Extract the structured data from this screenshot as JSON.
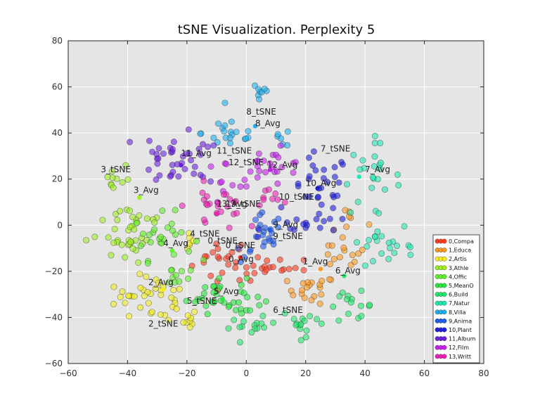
{
  "chart_data": {
    "type": "scatter",
    "title": "tSNE Visualization. Perplexity 5",
    "xlabel": "",
    "ylabel": "",
    "xlim": [
      -60,
      80
    ],
    "ylim": [
      -60,
      80
    ],
    "xticks": [
      -60,
      -40,
      -20,
      0,
      20,
      40,
      60,
      80
    ],
    "yticks": [
      -60,
      -40,
      -20,
      0,
      20,
      40,
      60,
      80
    ],
    "grid": true,
    "legend_position": "lower-right",
    "classes": [
      {
        "name": "0,Compa",
        "color": "#ff3b1f",
        "clusters": [
          {
            "cx": -8,
            "cy": -15,
            "sx": 5,
            "sy": 5,
            "n": 22
          },
          {
            "cx": 5,
            "cy": -20,
            "sx": 3,
            "sy": 3,
            "n": 12
          },
          {
            "cx": 15,
            "cy": -18,
            "sx": 3,
            "sy": 2,
            "n": 8
          }
        ]
      },
      {
        "name": "1,Educa",
        "color": "#ff9a1f",
        "clusters": [
          {
            "cx": 22,
            "cy": -28,
            "sx": 4,
            "sy": 3,
            "n": 20
          },
          {
            "cx": 32,
            "cy": -12,
            "sx": 4,
            "sy": 4,
            "n": 15
          },
          {
            "cx": 35,
            "cy": 2,
            "sx": 3,
            "sy": 3,
            "n": 6
          }
        ]
      },
      {
        "name": "2,Artis",
        "color": "#f4ee1a",
        "clusters": [
          {
            "cx": -30,
            "cy": -32,
            "sx": 5,
            "sy": 5,
            "n": 25
          },
          {
            "cx": -40,
            "cy": -30,
            "sx": 3,
            "sy": 3,
            "n": 10
          },
          {
            "cx": -22,
            "cy": -42,
            "sx": 3,
            "sy": 3,
            "n": 10
          },
          {
            "cx": -20,
            "cy": -5,
            "sx": 2,
            "sy": 3,
            "n": 6
          }
        ]
      },
      {
        "name": "3,Athle",
        "color": "#9ef01f",
        "clusters": [
          {
            "cx": -38,
            "cy": 0,
            "sx": 6,
            "sy": 6,
            "n": 30
          },
          {
            "cx": -45,
            "cy": 20,
            "sx": 3,
            "sy": 4,
            "n": 10
          },
          {
            "cx": -40,
            "cy": -10,
            "sx": 4,
            "sy": 3,
            "n": 10
          }
        ]
      },
      {
        "name": "4,Offic",
        "color": "#5ef028",
        "clusters": [
          {
            "cx": -28,
            "cy": -5,
            "sx": 5,
            "sy": 5,
            "n": 25
          },
          {
            "cx": -25,
            "cy": -22,
            "sx": 3,
            "sy": 3,
            "n": 10
          }
        ]
      },
      {
        "name": "5,MeanO",
        "color": "#26e83c",
        "clusters": [
          {
            "cx": -10,
            "cy": -30,
            "sx": 5,
            "sy": 4,
            "n": 25
          },
          {
            "cx": 0,
            "cy": -34,
            "sx": 4,
            "sy": 3,
            "n": 12
          }
        ]
      },
      {
        "name": "6,Build",
        "color": "#1fe86a",
        "clusters": [
          {
            "cx": 2,
            "cy": -44,
            "sx": 4,
            "sy": 2,
            "n": 15
          },
          {
            "cx": 20,
            "cy": -42,
            "sx": 4,
            "sy": 3,
            "n": 15
          },
          {
            "cx": 35,
            "cy": -35,
            "sx": 4,
            "sy": 3,
            "n": 15
          }
        ]
      },
      {
        "name": "7,Natur",
        "color": "#1fe8b4",
        "clusters": [
          {
            "cx": 42,
            "cy": 20,
            "sx": 5,
            "sy": 8,
            "n": 25
          },
          {
            "cx": 50,
            "cy": -12,
            "sx": 5,
            "sy": 3,
            "n": 12
          },
          {
            "cx": 42,
            "cy": -5,
            "sx": 3,
            "sy": 4,
            "n": 8
          }
        ]
      },
      {
        "name": "8,Villa",
        "color": "#1fb0f0",
        "clusters": [
          {
            "cx": 5,
            "cy": 58,
            "sx": 1.5,
            "sy": 3,
            "n": 8
          },
          {
            "cx": -5,
            "cy": 40,
            "sx": 5,
            "sy": 4,
            "n": 20
          },
          {
            "cx": 12,
            "cy": 38,
            "sx": 2,
            "sy": 2,
            "n": 6
          }
        ]
      },
      {
        "name": "9,Anima",
        "color": "#1f5cf0",
        "clusters": [
          {
            "cx": 6,
            "cy": -5,
            "sx": 3,
            "sy": 5,
            "n": 20
          },
          {
            "cx": 0,
            "cy": -13,
            "sx": 2,
            "sy": 2,
            "n": 5
          }
        ]
      },
      {
        "name": "10,Plant",
        "color": "#1f1fe0",
        "clusters": [
          {
            "cx": 25,
            "cy": 15,
            "sx": 5,
            "sy": 8,
            "n": 30
          },
          {
            "cx": 22,
            "cy": 0,
            "sx": 8,
            "sy": 2,
            "n": 15
          }
        ]
      },
      {
        "name": "11,Album",
        "color": "#6a1fe0",
        "clusters": [
          {
            "cx": -25,
            "cy": 30,
            "sx": 5,
            "sy": 6,
            "n": 30
          },
          {
            "cx": -15,
            "cy": 28,
            "sx": 3,
            "sy": 5,
            "n": 10
          }
        ]
      },
      {
        "name": "12,Film",
        "color": "#c81ff0",
        "clusters": [
          {
            "cx": 8,
            "cy": 25,
            "sx": 6,
            "sy": 4,
            "n": 25
          },
          {
            "cx": -8,
            "cy": 22,
            "sx": 3,
            "sy": 3,
            "n": 8
          }
        ]
      },
      {
        "name": "13,Writt",
        "color": "#f01fb8",
        "clusters": [
          {
            "cx": -10,
            "cy": 8,
            "sx": 5,
            "sy": 5,
            "n": 25
          },
          {
            "cx": 8,
            "cy": 12,
            "sx": 3,
            "sy": 2,
            "n": 8
          }
        ]
      }
    ],
    "annotations": [
      {
        "text": "8_tSNE",
        "x": 0,
        "y": 48
      },
      {
        "text": "8_Avg",
        "x": 3,
        "y": 43
      },
      {
        "text": "11_Avg",
        "x": -22,
        "y": 30
      },
      {
        "text": "11_tSNE",
        "x": -10,
        "y": 31
      },
      {
        "text": "7_tSNE",
        "x": 25,
        "y": 32
      },
      {
        "text": "12_tSNE",
        "x": -6,
        "y": 26
      },
      {
        "text": "12_Avg",
        "x": 7,
        "y": 25
      },
      {
        "text": "3_tSNE",
        "x": -49,
        "y": 23
      },
      {
        "text": "7_Avg",
        "x": 40,
        "y": 23
      },
      {
        "text": "10_Avg",
        "x": 20,
        "y": 17
      },
      {
        "text": "3_Avg",
        "x": -38,
        "y": 14
      },
      {
        "text": "10_tSNE",
        "x": 11,
        "y": 11
      },
      {
        "text": "13_Avg",
        "x": -10,
        "y": 8
      },
      {
        "text": "13_tSNE",
        "x": -7,
        "y": 8
      },
      {
        "text": "9_Avg",
        "x": 9,
        "y": -1
      },
      {
        "text": "4_tSNE",
        "x": -19,
        "y": -5
      },
      {
        "text": "9_tSNE",
        "x": 9,
        "y": -6
      },
      {
        "text": "0_tSNE",
        "x": -13,
        "y": -8
      },
      {
        "text": "4_Avg",
        "x": -28,
        "y": -9
      },
      {
        "text": "0_tSNE",
        "x": -7,
        "y": -10
      },
      {
        "text": "0_Avg",
        "x": -6,
        "y": -16
      },
      {
        "text": "1_Avg",
        "x": 19,
        "y": -17
      },
      {
        "text": "6_Avg",
        "x": 30,
        "y": -21
      },
      {
        "text": "2_Avg",
        "x": -33,
        "y": -26
      },
      {
        "text": "5_Avg",
        "x": -11,
        "y": -30
      },
      {
        "text": "5_tSNE",
        "x": -20,
        "y": -34
      },
      {
        "text": "6_tSNE",
        "x": 9,
        "y": -38
      },
      {
        "text": "2_tSNE",
        "x": -33,
        "y": -44
      }
    ],
    "avg_markers": [
      {
        "x": 3,
        "y": 43,
        "color": "#1fb0f0"
      },
      {
        "x": -22,
        "y": 26,
        "color": "#6a1fe0"
      },
      {
        "x": 38,
        "y": 21,
        "color": "#1fe8b4"
      },
      {
        "x": 24,
        "y": 16,
        "color": "#1f1fe0"
      },
      {
        "x": 8,
        "y": 24,
        "color": "#c81ff0"
      },
      {
        "x": -36,
        "y": 12,
        "color": "#9ef01f"
      },
      {
        "x": -10,
        "y": 5,
        "color": "#f01fb8"
      },
      {
        "x": 8,
        "y": -2,
        "color": "#1f5cf0"
      },
      {
        "x": -25,
        "y": -11,
        "color": "#5ef028"
      },
      {
        "x": -2,
        "y": -14,
        "color": "#ff3b1f"
      },
      {
        "x": 25,
        "y": -19,
        "color": "#ff9a1f"
      },
      {
        "x": 33,
        "y": -22,
        "color": "#1fe86a"
      },
      {
        "x": -28,
        "y": -28,
        "color": "#f4ee1a"
      },
      {
        "x": -8,
        "y": -32,
        "color": "#26e83c"
      }
    ]
  }
}
